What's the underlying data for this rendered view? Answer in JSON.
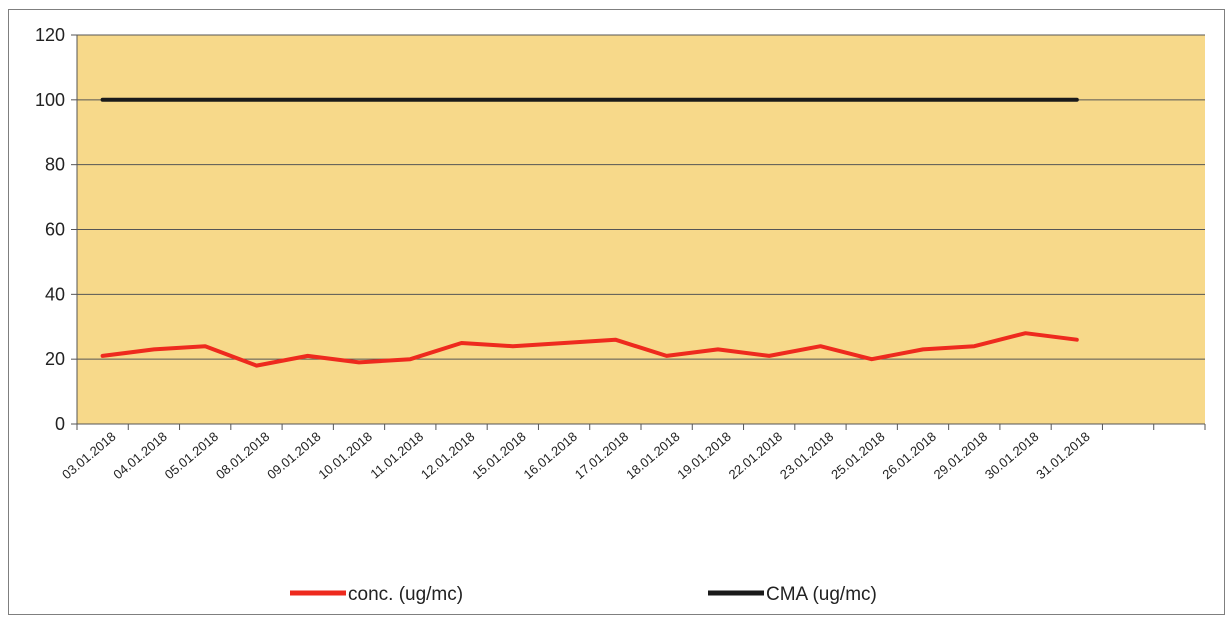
{
  "chart_data": {
    "type": "line",
    "title": "",
    "xlabel": "",
    "ylabel": "",
    "categories": [
      "03.01.2018",
      "04.01.2018",
      "05.01.2018",
      "08.01.2018",
      "09.01.2018",
      "10.01.2018",
      "11.01.2018",
      "12.01.2018",
      "15.01.2018",
      "16.01.2018",
      "17.01.2018",
      "18.01.2018",
      "19.01.2018",
      "22.01.2018",
      "23.01.2018",
      "25.01.2018",
      "26.01.2018",
      "29.01.2018",
      "30.01.2018",
      "31.01.2018"
    ],
    "series": [
      {
        "name": "conc. (ug/mc)",
        "color": "#ee2a1e",
        "values": [
          21,
          23,
          24,
          18,
          21,
          19,
          20,
          25,
          24,
          25,
          26,
          21,
          23,
          21,
          24,
          20,
          23,
          24,
          28,
          26
        ]
      },
      {
        "name": "CMA (ug/mc)",
        "color": "#1a1a1a",
        "values": [
          100,
          100,
          100,
          100,
          100,
          100,
          100,
          100,
          100,
          100,
          100,
          100,
          100,
          100,
          100,
          100,
          100,
          100,
          100,
          100
        ]
      }
    ],
    "ylim": [
      0,
      120
    ],
    "yticks": [
      0,
      20,
      40,
      60,
      80,
      100,
      120
    ],
    "grid": true,
    "legend": "bottom",
    "plot_background": "#f7d98a"
  }
}
